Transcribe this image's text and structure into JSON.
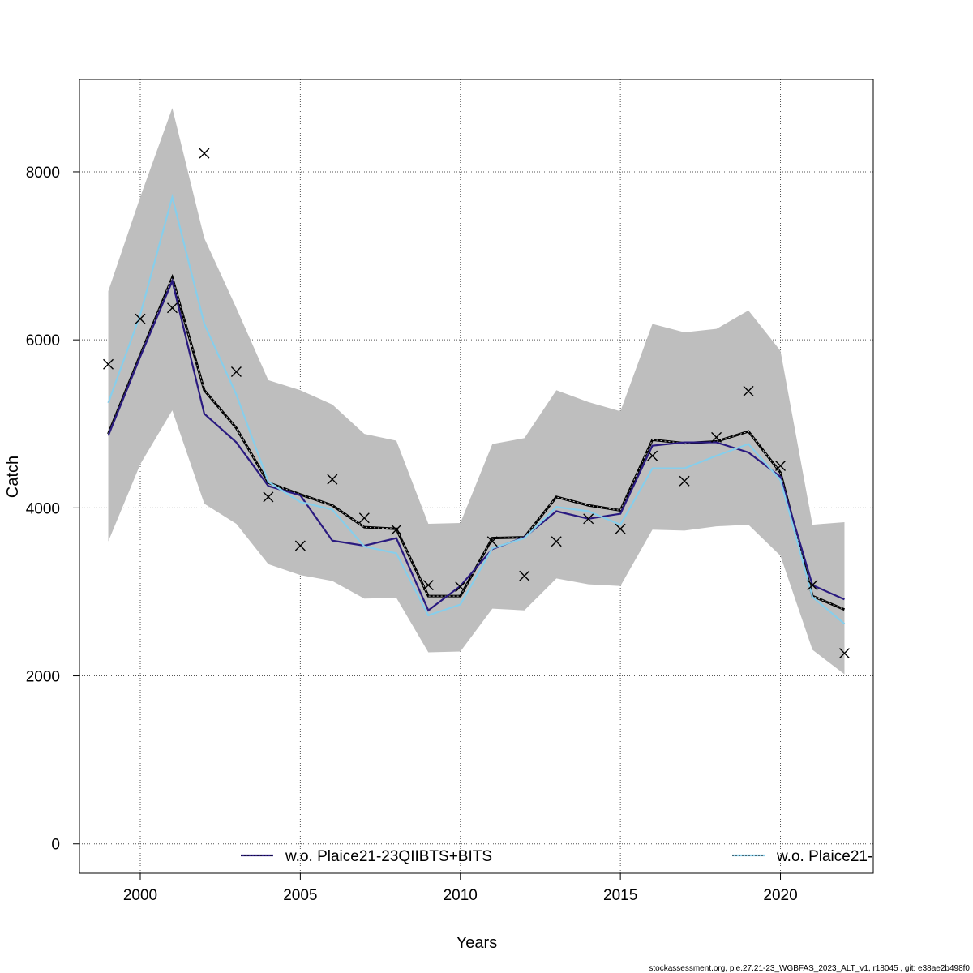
{
  "chart_data": {
    "type": "line",
    "xlabel": "Years",
    "ylabel": "Catch",
    "xlim": [
      1998.1,
      2022.9
    ],
    "ylim": [
      -350,
      9100
    ],
    "xticks": [
      2000,
      2005,
      2010,
      2015,
      2020
    ],
    "yticks": [
      0,
      2000,
      4000,
      6000,
      8000
    ],
    "grid": true,
    "x": [
      1999,
      2000,
      2001,
      2002,
      2003,
      2004,
      2005,
      2006,
      2007,
      2008,
      2009,
      2010,
      2011,
      2012,
      2013,
      2014,
      2015,
      2016,
      2017,
      2018,
      2019,
      2020,
      2021,
      2022
    ],
    "band": {
      "color": "#bebebe",
      "upper": [
        6580,
        7700,
        8760,
        7210,
        6380,
        5520,
        5400,
        5230,
        4880,
        4800,
        3810,
        3820,
        4760,
        4830,
        5400,
        5260,
        5150,
        6190,
        6090,
        6130,
        6350,
        5870,
        3800,
        3830
      ],
      "lower": [
        3600,
        4520,
        5160,
        4050,
        3810,
        3330,
        3200,
        3130,
        2920,
        2930,
        2280,
        2290,
        2800,
        2780,
        3160,
        3090,
        3070,
        3740,
        3730,
        3780,
        3800,
        3430,
        2310,
        2020
      ]
    },
    "series": [
      {
        "color": "#000000",
        "style": "dashed-double",
        "values": [
          4880,
          5820,
          6740,
          5400,
          4950,
          4300,
          4160,
          4030,
          3770,
          3750,
          2950,
          2950,
          3640,
          3650,
          4130,
          4030,
          3970,
          4810,
          4770,
          4790,
          4910,
          4420,
          2950,
          2790
        ]
      },
      {
        "name": "w.o. Plaice21-23QIIBTS+BITS",
        "color": "#2a1a80",
        "style": "solid",
        "values": [
          4860,
          5800,
          6700,
          5120,
          4780,
          4260,
          4150,
          3610,
          3550,
          3640,
          2780,
          3070,
          3510,
          3650,
          3960,
          3870,
          3930,
          4740,
          4780,
          4780,
          4660,
          4370,
          3080,
          2910
        ]
      },
      {
        "name": "w.o. Plaice21-",
        "color": "#87ceeb",
        "style": "solid",
        "values": [
          5250,
          6300,
          7700,
          6190,
          5350,
          4310,
          4070,
          3980,
          3540,
          3460,
          2720,
          2850,
          3520,
          3640,
          4010,
          3960,
          3800,
          4470,
          4470,
          4620,
          4760,
          4330,
          2940,
          2620
        ]
      }
    ],
    "observations": {
      "marker": "x",
      "x": [
        1999,
        2000,
        2001,
        2002,
        2003,
        2004,
        2005,
        2006,
        2007,
        2008,
        2009,
        2010,
        2011,
        2012,
        2013,
        2014,
        2015,
        2016,
        2017,
        2018,
        2019,
        2020,
        2021,
        2022
      ],
      "y": [
        5710,
        6250,
        6380,
        8220,
        5620,
        4130,
        3550,
        4340,
        3880,
        3740,
        3080,
        3060,
        3600,
        3190,
        3600,
        3870,
        3750,
        4620,
        4320,
        4840,
        5390,
        4500,
        3080,
        2270
      ]
    },
    "legend": {
      "placement": "bottom",
      "entries": [
        "w.o. Plaice21-23QIIBTS+BITS",
        "w.o. Plaice21-"
      ]
    }
  },
  "footer": "stockassessment.org, ple.27.21-23_WGBFAS_2023_ALT_v1, r18045 , git: e38ae2b498f0"
}
